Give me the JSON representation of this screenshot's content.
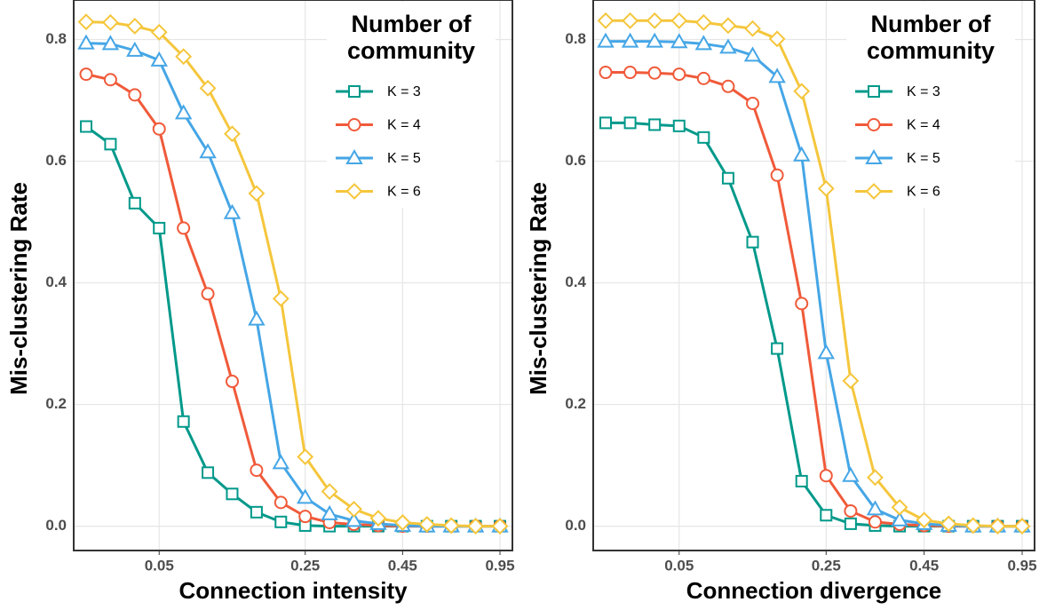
{
  "chart_data": [
    {
      "type": "line",
      "x_label": "Connection intensity",
      "y_label": "Mis-clustering Rate",
      "legend_title": "Number of community",
      "categories": [
        null,
        null,
        null,
        "0.05",
        null,
        null,
        null,
        null,
        null,
        "0.25",
        null,
        null,
        null,
        "0.45",
        null,
        null,
        null,
        "0.95"
      ],
      "ylim": [
        -0.04,
        0.865
      ],
      "yticks": [
        {
          "value": 0,
          "label": "0.0"
        },
        0.2,
        0.4,
        0.6,
        0.8
      ],
      "grid": true,
      "series": [
        {
          "name": "K = 3",
          "color": "#00998a",
          "marker": "square",
          "values": [
            0.657,
            0.628,
            0.531,
            0.49,
            0.172,
            0.088,
            0.053,
            0.023,
            0.007,
            0.001,
            0,
            0,
            0,
            0,
            0,
            0,
            0,
            0
          ]
        },
        {
          "name": "K = 4",
          "color": "#f05a3a",
          "marker": "circle",
          "values": [
            0.743,
            0.734,
            0.709,
            0.653,
            0.49,
            0.382,
            0.238,
            0.092,
            0.039,
            0.016,
            0.006,
            0.003,
            0.001,
            0,
            0,
            0,
            0,
            0
          ]
        },
        {
          "name": "K = 5",
          "color": "#45a6e6",
          "marker": "triangle",
          "values": [
            0.794,
            0.793,
            0.782,
            0.766,
            0.679,
            0.615,
            0.515,
            0.34,
            0.104,
            0.047,
            0.02,
            0.009,
            0.004,
            0.001,
            0,
            0,
            0,
            0
          ]
        },
        {
          "name": "K = 6",
          "color": "#f5c63c",
          "marker": "diamond",
          "values": [
            0.829,
            0.828,
            0.822,
            0.812,
            0.772,
            0.72,
            0.645,
            0.547,
            0.374,
            0.114,
            0.057,
            0.028,
            0.013,
            0.006,
            0.003,
            0.001,
            0,
            0
          ]
        }
      ]
    },
    {
      "type": "line",
      "x_label": "Connection divergence",
      "y_label": "Mis-clustering Rate",
      "legend_title": "Number of community",
      "categories": [
        null,
        null,
        null,
        "0.05",
        null,
        null,
        null,
        null,
        null,
        "0.25",
        null,
        null,
        null,
        "0.45",
        null,
        null,
        null,
        "0.95"
      ],
      "ylim": [
        -0.04,
        0.865
      ],
      "yticks": [
        {
          "value": 0,
          "label": "0.0"
        },
        0.2,
        0.4,
        0.6,
        0.8
      ],
      "grid": true,
      "series": [
        {
          "name": "K = 3",
          "color": "#00998a",
          "marker": "square",
          "values": [
            0.663,
            0.663,
            0.66,
            0.658,
            0.639,
            0.572,
            0.467,
            0.292,
            0.074,
            0.018,
            0.004,
            0.001,
            0,
            0,
            0,
            0,
            0,
            0
          ]
        },
        {
          "name": "K = 4",
          "color": "#f05a3a",
          "marker": "circle",
          "values": [
            0.746,
            0.746,
            0.745,
            0.743,
            0.736,
            0.723,
            0.695,
            0.577,
            0.366,
            0.083,
            0.025,
            0.007,
            0.003,
            0.001,
            0,
            0,
            0,
            0
          ]
        },
        {
          "name": "K = 5",
          "color": "#45a6e6",
          "marker": "triangle",
          "values": [
            0.797,
            0.797,
            0.797,
            0.796,
            0.793,
            0.787,
            0.774,
            0.739,
            0.61,
            0.285,
            0.083,
            0.028,
            0.01,
            0.004,
            0.001,
            0,
            0,
            0
          ]
        },
        {
          "name": "K = 6",
          "color": "#f5c63c",
          "marker": "diamond",
          "values": [
            0.831,
            0.831,
            0.831,
            0.831,
            0.828,
            0.823,
            0.818,
            0.801,
            0.715,
            0.555,
            0.239,
            0.08,
            0.031,
            0.01,
            0.004,
            0.001,
            0,
            0
          ]
        }
      ]
    }
  ]
}
